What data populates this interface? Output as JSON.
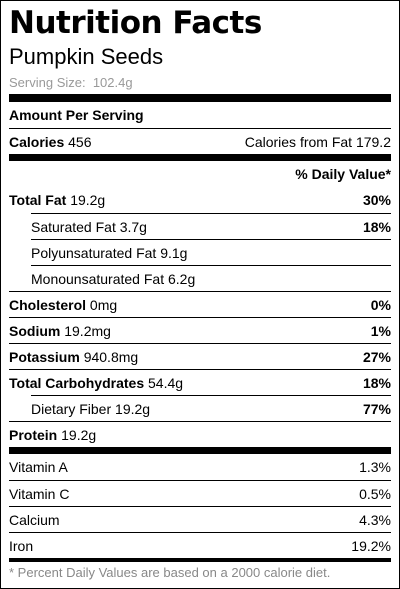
{
  "title": "Nutrition Facts",
  "food": "Pumpkin Seeds",
  "serving_size": {
    "label": "Serving Size:",
    "value": "102.4g"
  },
  "amount_header": "Amount Per Serving",
  "calories": {
    "label": "Calories",
    "value": "456"
  },
  "calories_from_fat": {
    "label": "Calories from Fat",
    "value": "179.2"
  },
  "daily_value_header": "% Daily Value*",
  "nutrients": [
    {
      "label": "Total Fat",
      "amount": "19.2g",
      "dv": "30%",
      "sub_items": [
        {
          "label": "Saturated Fat",
          "amount": "3.7g",
          "dv": "18%"
        },
        {
          "label": "Polyunsaturated Fat",
          "amount": "9.1g"
        },
        {
          "label": "Monounsaturated Fat",
          "amount": "6.2g"
        }
      ]
    },
    {
      "label": "Cholesterol",
      "amount": "0mg",
      "dv": "0%"
    },
    {
      "label": "Sodium",
      "amount": "19.2mg",
      "dv": "1%"
    },
    {
      "label": "Potassium",
      "amount": "940.8mg",
      "dv": "27%"
    },
    {
      "label": "Total Carbohydrates",
      "amount": "54.4g",
      "dv": "18%",
      "sub_items": [
        {
          "label": "Dietary Fiber",
          "amount": "19.2g",
          "dv": "77%"
        }
      ]
    },
    {
      "label": "Protein",
      "amount": "19.2g"
    }
  ],
  "vitamins": [
    {
      "label": "Vitamin A",
      "value": "1.3%"
    },
    {
      "label": "Vitamin C",
      "value": "0.5%"
    },
    {
      "label": "Calcium",
      "value": "4.3%"
    },
    {
      "label": "Iron",
      "value": "19.2%"
    }
  ],
  "footnote": "* Percent Daily Values are based on a 2000 calorie diet."
}
